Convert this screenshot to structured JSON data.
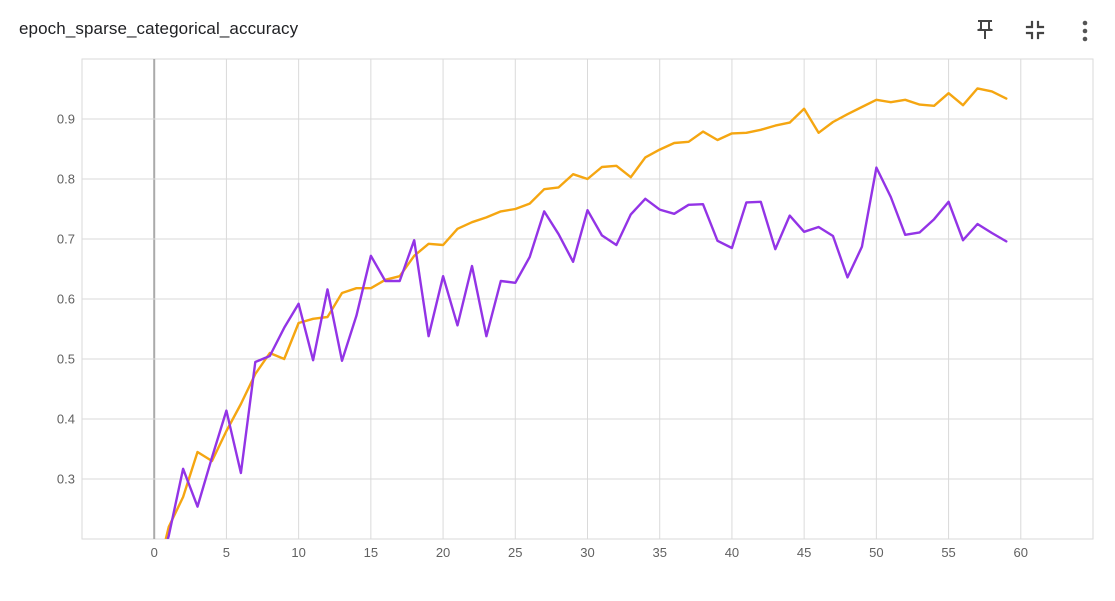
{
  "header": {
    "title": "epoch_sparse_categorical_accuracy",
    "pin_icon": "pin-icon",
    "collapse_icon": "fit-to-screen-icon",
    "more_icon": "more-vert-icon"
  },
  "colors": {
    "series_orange": "#f5a611",
    "series_purple": "#9334e6",
    "grid": "#dadada",
    "axis_zero": "#aaaaaa",
    "tick_text": "#616161"
  },
  "chart_data": {
    "type": "line",
    "title": "epoch_sparse_categorical_accuracy",
    "xlabel": "",
    "ylabel": "",
    "xlim": [
      -5,
      65
    ],
    "ylim": [
      0.2,
      1.0
    ],
    "x_ticks": [
      0,
      5,
      10,
      15,
      20,
      25,
      30,
      35,
      40,
      45,
      50,
      55,
      60
    ],
    "y_ticks": [
      0.3,
      0.4,
      0.5,
      0.6,
      0.7,
      0.8,
      0.9
    ],
    "x_tick_labels": [
      "0",
      "5",
      "10",
      "15",
      "20",
      "25",
      "30",
      "35",
      "40",
      "45",
      "50",
      "55",
      "60"
    ],
    "y_tick_labels": [
      "0.3",
      "0.4",
      "0.5",
      "0.6",
      "0.7",
      "0.8",
      "0.9"
    ],
    "grid": true,
    "legend": "none",
    "series": [
      {
        "color": "#f5a611",
        "x": [
          0,
          1,
          2,
          3,
          4,
          5,
          6,
          7,
          8,
          9,
          10,
          11,
          12,
          13,
          14,
          15,
          16,
          17,
          18,
          19,
          20,
          21,
          22,
          23,
          24,
          25,
          26,
          27,
          28,
          29,
          30,
          31,
          32,
          33,
          34,
          35,
          36,
          37,
          38,
          39,
          40,
          41,
          42,
          43,
          44,
          45,
          46,
          47,
          48,
          49,
          50,
          51,
          52,
          53,
          54,
          55,
          56,
          57,
          58,
          59
        ],
        "values": [
          0.12,
          0.22,
          0.27,
          0.345,
          0.33,
          0.38,
          0.425,
          0.475,
          0.51,
          0.5,
          0.56,
          0.567,
          0.57,
          0.61,
          0.618,
          0.618,
          0.632,
          0.638,
          0.672,
          0.692,
          0.69,
          0.717,
          0.728,
          0.736,
          0.746,
          0.75,
          0.759,
          0.783,
          0.786,
          0.808,
          0.8,
          0.82,
          0.822,
          0.803,
          0.836,
          0.849,
          0.86,
          0.862,
          0.879,
          0.865,
          0.876,
          0.877,
          0.882,
          0.889,
          0.894,
          0.917,
          0.877,
          0.895,
          0.908,
          0.92,
          0.932,
          0.928,
          0.932,
          0.924,
          0.922,
          0.943,
          0.923,
          0.951,
          0.946,
          0.934
        ]
      },
      {
        "color": "#9334e6",
        "x": [
          0,
          1,
          2,
          3,
          4,
          5,
          6,
          7,
          8,
          9,
          10,
          11,
          12,
          13,
          14,
          15,
          16,
          17,
          18,
          19,
          20,
          21,
          22,
          23,
          24,
          25,
          26,
          27,
          28,
          29,
          30,
          31,
          32,
          33,
          34,
          35,
          36,
          37,
          38,
          39,
          40,
          41,
          42,
          43,
          44,
          45,
          46,
          47,
          48,
          49,
          50,
          51,
          52,
          53,
          54,
          55,
          56,
          57,
          58,
          59
        ],
        "values": [
          0.12,
          0.205,
          0.317,
          0.254,
          0.336,
          0.414,
          0.31,
          0.495,
          0.505,
          0.552,
          0.592,
          0.498,
          0.616,
          0.497,
          0.572,
          0.672,
          0.63,
          0.63,
          0.698,
          0.538,
          0.638,
          0.556,
          0.655,
          0.538,
          0.63,
          0.627,
          0.67,
          0.746,
          0.708,
          0.662,
          0.748,
          0.706,
          0.69,
          0.741,
          0.767,
          0.749,
          0.742,
          0.757,
          0.758,
          0.697,
          0.685,
          0.761,
          0.762,
          0.683,
          0.739,
          0.712,
          0.72,
          0.705,
          0.636,
          0.687,
          0.819,
          0.77,
          0.707,
          0.711,
          0.733,
          0.762,
          0.698,
          0.725,
          0.71,
          0.696
        ]
      }
    ]
  }
}
